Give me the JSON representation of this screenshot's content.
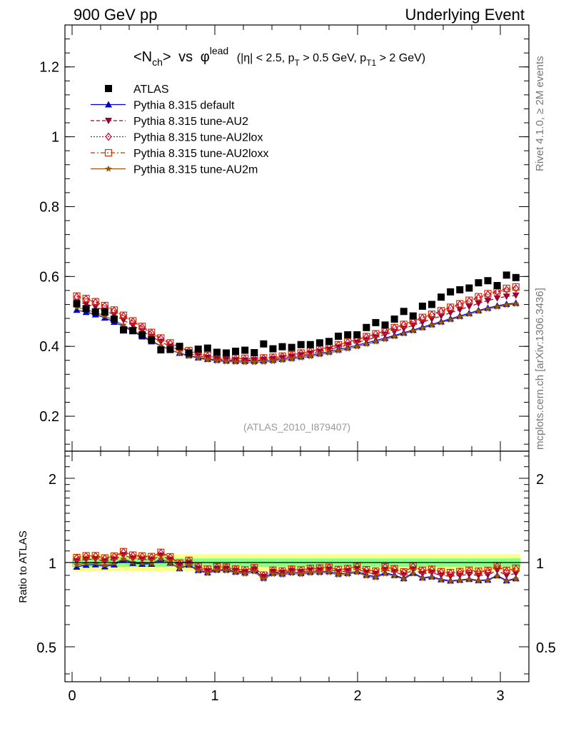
{
  "header": {
    "left": "900 GeV pp",
    "right": "Underlying Event"
  },
  "side_labels": {
    "rivet": "Rivet 4.1.0, ≥ 2M events",
    "mcplots": "mcplots.cern.ch [arXiv:1306.3436]"
  },
  "colors": {
    "atlas": "#000000",
    "default": "#0000cc",
    "au2": "#990033",
    "au2lox": "#cc0033",
    "au2loxx": "#cc3300",
    "au2m": "#995500",
    "band_inner": "#88ff88",
    "band_outer": "#ffff88"
  },
  "chart_data": {
    "type": "scatter",
    "title": {
      "nch_base": "<N",
      "nch_sub": "ch",
      "nch_close": ">",
      "vs": "vs",
      "phi": "φ",
      "phi_sup": "lead",
      "cut_open": "(|η| < 2.5, p",
      "cut_pt_sub": "T",
      "cut_mid": " > 0.5 GeV, p",
      "cut_pt1_sub": "T1",
      "cut_close": " > 2 GeV)"
    },
    "analysis_id": "(ATLAS_2010_I879407)",
    "xlim": [
      -0.05,
      3.2
    ],
    "ylim": [
      0.1,
      1.32
    ],
    "ratio_ylim": [
      0.375,
      2.5
    ],
    "ratio_ylabel": "Ratio to ATLAS",
    "x_ticks": [
      {
        "v": 0,
        "label": "0"
      },
      {
        "v": 1,
        "label": "1"
      },
      {
        "v": 2,
        "label": "2"
      },
      {
        "v": 3,
        "label": "3"
      }
    ],
    "y_ticks": [
      {
        "v": 0.2,
        "label": "0.2"
      },
      {
        "v": 0.4,
        "label": "0.4"
      },
      {
        "v": 0.6,
        "label": "0.6"
      },
      {
        "v": 0.8,
        "label": "0.8"
      },
      {
        "v": 1.0,
        "label": "1"
      },
      {
        "v": 1.2,
        "label": "1.2"
      }
    ],
    "ratio_ticks": [
      {
        "v": 0.5,
        "label": "0.5"
      },
      {
        "v": 1,
        "label": "1"
      },
      {
        "v": 2,
        "label": "2"
      }
    ],
    "x": [
      0.0327,
      0.0982,
      0.1636,
      0.2291,
      0.2945,
      0.36,
      0.4254,
      0.4909,
      0.5563,
      0.6218,
      0.6872,
      0.7527,
      0.8181,
      0.8836,
      0.949,
      1.0145,
      1.0799,
      1.1454,
      1.2108,
      1.2763,
      1.3417,
      1.4072,
      1.4726,
      1.5381,
      1.6035,
      1.669,
      1.7344,
      1.7999,
      1.8653,
      1.9308,
      1.9962,
      2.0617,
      2.1271,
      2.1926,
      2.258,
      2.3235,
      2.3889,
      2.4544,
      2.5198,
      2.5853,
      2.6507,
      2.7162,
      2.7816,
      2.8471,
      2.9125,
      2.978,
      3.0434,
      3.1089
    ],
    "series": [
      {
        "key": "atlas",
        "name": "ATLAS",
        "marker": "square-filled",
        "line": "none",
        "values": [
          0.522,
          0.508,
          0.499,
          0.498,
          0.478,
          0.447,
          0.445,
          0.433,
          0.419,
          0.39,
          0.391,
          0.4,
          0.381,
          0.392,
          0.395,
          0.383,
          0.381,
          0.386,
          0.389,
          0.382,
          0.407,
          0.393,
          0.399,
          0.397,
          0.405,
          0.405,
          0.41,
          0.414,
          0.429,
          0.433,
          0.433,
          0.454,
          0.468,
          0.461,
          0.478,
          0.5,
          0.487,
          0.515,
          0.52,
          0.541,
          0.556,
          0.562,
          0.567,
          0.582,
          0.588,
          0.574,
          0.604,
          0.597
        ]
      },
      {
        "key": "default",
        "name": "Pythia 8.315 default",
        "marker": "triangle-up-filled",
        "line": "solid",
        "values": [
          0.504,
          0.498,
          0.491,
          0.482,
          0.47,
          0.457,
          0.443,
          0.428,
          0.414,
          0.401,
          0.39,
          0.381,
          0.374,
          0.368,
          0.364,
          0.361,
          0.359,
          0.358,
          0.358,
          0.358,
          0.359,
          0.361,
          0.364,
          0.367,
          0.371,
          0.375,
          0.38,
          0.385,
          0.391,
          0.397,
          0.403,
          0.41,
          0.417,
          0.424,
          0.431,
          0.439,
          0.447,
          0.455,
          0.463,
          0.471,
          0.479,
          0.487,
          0.495,
          0.503,
          0.51,
          0.516,
          0.521,
          0.524
        ]
      },
      {
        "key": "au2",
        "name": "Pythia 8.315 tune-AU2",
        "marker": "triangle-down-filled",
        "line": "dashed",
        "values": [
          0.528,
          0.521,
          0.513,
          0.503,
          0.49,
          0.475,
          0.46,
          0.444,
          0.428,
          0.413,
          0.4,
          0.389,
          0.38,
          0.373,
          0.368,
          0.364,
          0.362,
          0.361,
          0.36,
          0.361,
          0.362,
          0.364,
          0.367,
          0.371,
          0.375,
          0.38,
          0.385,
          0.391,
          0.397,
          0.404,
          0.411,
          0.418,
          0.426,
          0.434,
          0.442,
          0.451,
          0.46,
          0.469,
          0.478,
          0.487,
          0.496,
          0.505,
          0.514,
          0.523,
          0.531,
          0.538,
          0.543,
          0.546
        ]
      },
      {
        "key": "au2lox",
        "name": "Pythia 8.315 tune-AU2lox",
        "marker": "diamond-open",
        "line": "dotted",
        "values": [
          0.542,
          0.535,
          0.526,
          0.515,
          0.502,
          0.487,
          0.471,
          0.455,
          0.438,
          0.422,
          0.408,
          0.396,
          0.386,
          0.378,
          0.372,
          0.368,
          0.366,
          0.365,
          0.364,
          0.364,
          0.366,
          0.368,
          0.371,
          0.375,
          0.38,
          0.385,
          0.391,
          0.397,
          0.404,
          0.411,
          0.419,
          0.427,
          0.435,
          0.444,
          0.453,
          0.462,
          0.471,
          0.481,
          0.49,
          0.5,
          0.51,
          0.52,
          0.529,
          0.539,
          0.548,
          0.556,
          0.562,
          0.566
        ]
      },
      {
        "key": "au2loxx",
        "name": "Pythia 8.315 tune-AU2loxx",
        "marker": "square-open",
        "line": "dashdot",
        "values": [
          0.544,
          0.537,
          0.528,
          0.517,
          0.504,
          0.489,
          0.473,
          0.457,
          0.44,
          0.424,
          0.41,
          0.398,
          0.388,
          0.38,
          0.374,
          0.37,
          0.367,
          0.366,
          0.366,
          0.366,
          0.367,
          0.369,
          0.372,
          0.376,
          0.381,
          0.386,
          0.392,
          0.398,
          0.405,
          0.412,
          0.42,
          0.428,
          0.436,
          0.445,
          0.454,
          0.463,
          0.473,
          0.483,
          0.492,
          0.502,
          0.512,
          0.522,
          0.532,
          0.542,
          0.551,
          0.559,
          0.566,
          0.57
        ]
      },
      {
        "key": "au2m",
        "name": "Pythia 8.315 tune-AU2m",
        "marker": "star-filled",
        "line": "solid",
        "values": [
          0.512,
          0.505,
          0.497,
          0.487,
          0.475,
          0.461,
          0.446,
          0.431,
          0.416,
          0.402,
          0.39,
          0.38,
          0.372,
          0.366,
          0.361,
          0.358,
          0.356,
          0.355,
          0.354,
          0.354,
          0.355,
          0.357,
          0.36,
          0.363,
          0.367,
          0.371,
          0.376,
          0.381,
          0.387,
          0.393,
          0.399,
          0.406,
          0.413,
          0.42,
          0.428,
          0.436,
          0.444,
          0.452,
          0.46,
          0.468,
          0.476,
          0.484,
          0.492,
          0.5,
          0.507,
          0.513,
          0.518,
          0.521
        ]
      }
    ],
    "band": {
      "inner_half_width": 0.035,
      "outer_half_width": 0.07
    }
  }
}
